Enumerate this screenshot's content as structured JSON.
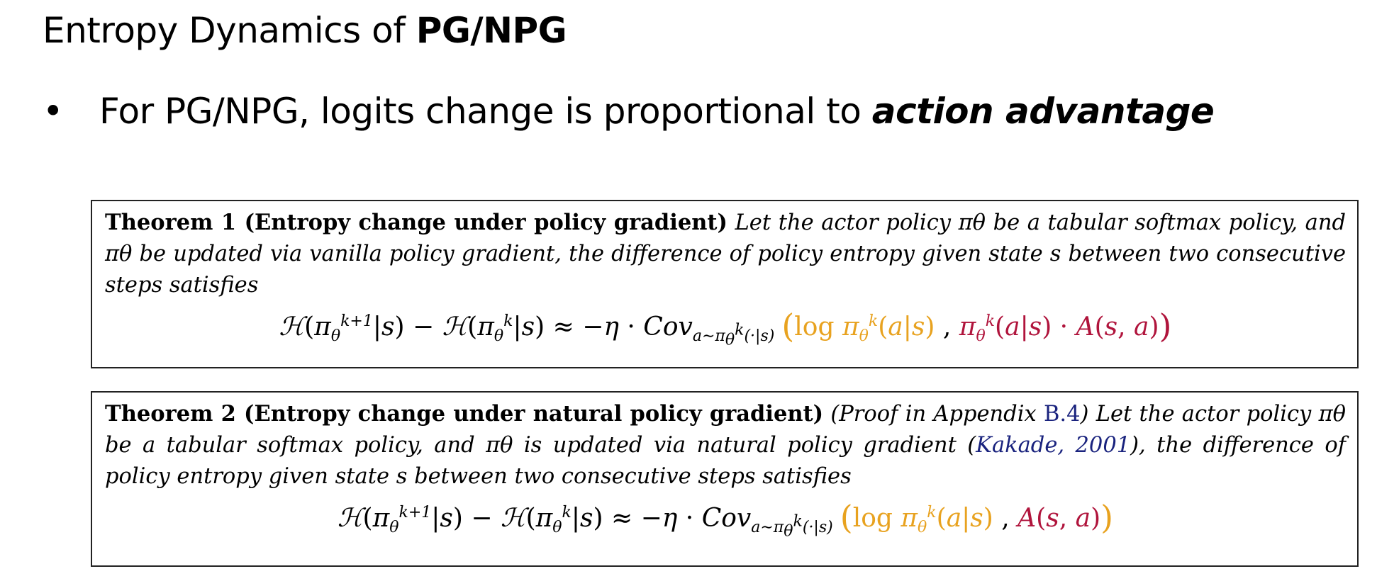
{
  "title": {
    "prefix": "Entropy Dynamics of ",
    "bold": "PG/NPG"
  },
  "bullet": {
    "symbol": "•",
    "text": "For PG/NPG, logits change is proportional to ",
    "emphasis": "action advantage"
  },
  "theorem1": {
    "heading": "Theorem 1 (Entropy change under policy gradient)",
    "body": "Let the actor policy πθ be a tabular softmax policy, and πθ be updated via vanilla policy gradient, the difference of policy entropy given state s between two consecutive steps satisfies"
  },
  "theorem2": {
    "heading": "Theorem 2 (Entropy change under natural policy gradient)",
    "body_pre": "(Proof in Appendix ",
    "appendix_ref": "B.4",
    "body_mid": ") Let the actor policy πθ be a tabular softmax policy, and πθ is updated via natural policy gradient (",
    "citation_author": "Kakade",
    "citation_sep": ", ",
    "citation_year": "2001",
    "body_post": "), the difference of policy entropy given state s between two consecutive steps satisfies"
  },
  "colors": {
    "log_term": "#e8a21f",
    "advantage_term": "#b0143c",
    "link": "#1a237e"
  }
}
